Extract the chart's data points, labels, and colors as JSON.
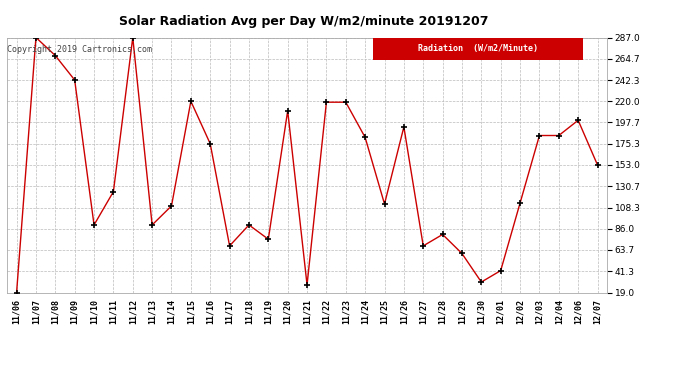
{
  "title": "Solar Radiation Avg per Day W/m2/minute 20191207",
  "copyright": "Copyright 2019 Cartronics.com",
  "legend_label": "Radiation  (W/m2/Minute)",
  "dates": [
    "11/06",
    "11/07",
    "11/08",
    "11/09",
    "11/10",
    "11/11",
    "11/12",
    "11/13",
    "11/14",
    "11/15",
    "11/16",
    "11/17",
    "11/18",
    "11/19",
    "11/20",
    "11/21",
    "11/22",
    "11/23",
    "11/24",
    "11/25",
    "11/26",
    "11/27",
    "11/28",
    "11/29",
    "11/30",
    "12/01",
    "12/02",
    "12/03",
    "12/04",
    "12/06",
    "12/07"
  ],
  "values": [
    19.0,
    287.0,
    268.0,
    242.3,
    90.0,
    125.0,
    287.0,
    90.0,
    110.0,
    220.0,
    175.3,
    68.0,
    90.0,
    75.0,
    210.0,
    27.0,
    219.0,
    219.0,
    182.0,
    112.0,
    193.0,
    68.0,
    80.0,
    60.0,
    30.0,
    42.0,
    113.0,
    184.0,
    184.0,
    200.0,
    153.0
  ],
  "line_color": "#cc0000",
  "marker_color": "#000000",
  "background_color": "#ffffff",
  "grid_color": "#bbbbbb",
  "ylim": [
    19.0,
    287.0
  ],
  "yticks": [
    19.0,
    41.3,
    63.7,
    86.0,
    108.3,
    130.7,
    153.0,
    175.3,
    197.7,
    220.0,
    242.3,
    264.7,
    287.0
  ],
  "title_fontsize": 9,
  "copyright_fontsize": 6,
  "legend_bg": "#cc0000",
  "legend_text_color": "#ffffff",
  "tick_fontsize": 6,
  "ytick_fontsize": 6.5
}
